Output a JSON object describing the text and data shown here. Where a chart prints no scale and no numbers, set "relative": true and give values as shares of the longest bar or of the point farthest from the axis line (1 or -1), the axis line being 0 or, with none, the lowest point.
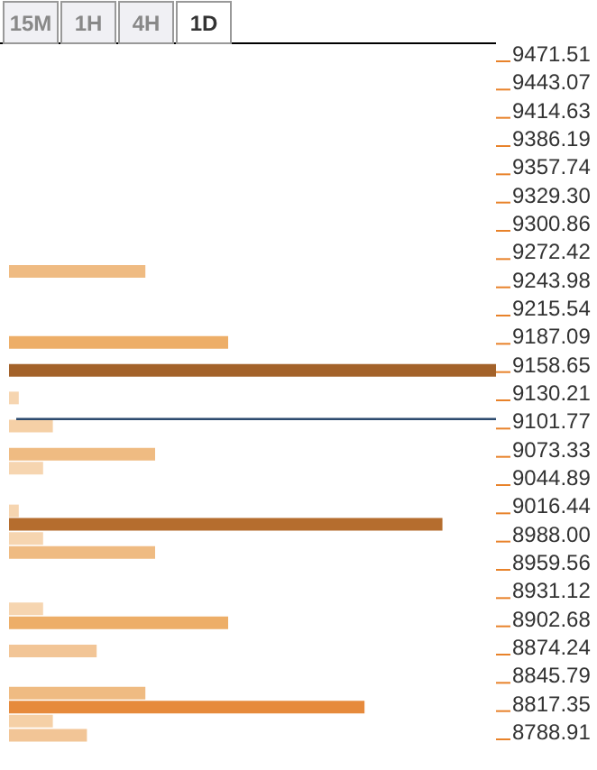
{
  "chart_data": {
    "type": "bar",
    "orientation": "horizontal",
    "relative": true,
    "annotations": [
      "15M",
      "1H",
      "4H",
      "1D"
    ],
    "x": [
      9259.9,
      9188.6,
      9160.3,
      9132.6,
      9104.3,
      9076.0,
      9061.9,
      9018.9,
      9005.3,
      8991.1,
      8977.0,
      8920.4,
      8906.3,
      8877.9,
      8835.5,
      8821.4,
      8807.2,
      8793.1
    ],
    "values": [
      0.28,
      0.45,
      1,
      0.02,
      0.09,
      0.3,
      0.07,
      0.02,
      0.89,
      0.07,
      0.3,
      0.07,
      0.45,
      0.18,
      0.28,
      0.73,
      0.09,
      0.16
    ],
    "colors": [
      "#efbb82",
      "#edae68",
      "#a3622a",
      "#f6d5b0",
      "#f5d0a6",
      "#efbb82",
      "#f6d5b0",
      "#f6d5b0",
      "#b56d2e",
      "#f6d5b0",
      "#efbb82",
      "#f6d5b0",
      "#edae68",
      "#f2c596",
      "#efbb82",
      "#e68a3c",
      "#f5d0a6",
      "#f2c596"
    ],
    "ylim": [
      8788.91,
      9471.51
    ],
    "yticks": [
      9471.51,
      9443.07,
      9414.63,
      9386.19,
      9357.74,
      {
        "value": 9329.3,
        "label": "9329.30"
      },
      9300.86,
      9272.42,
      9243.98,
      9215.54,
      9187.09,
      9158.65,
      9130.21,
      9101.77,
      9073.33,
      9044.89,
      9016.44,
      {
        "value": 8988,
        "label": "8988.00"
      },
      8959.56,
      8931.12,
      8902.68,
      8874.24,
      8845.79,
      8817.35,
      8788.91
    ],
    "ref_lines": [
      {
        "axis": "y",
        "value": 9111.4,
        "color": "#2c4a6e"
      }
    ],
    "grid": false
  }
}
